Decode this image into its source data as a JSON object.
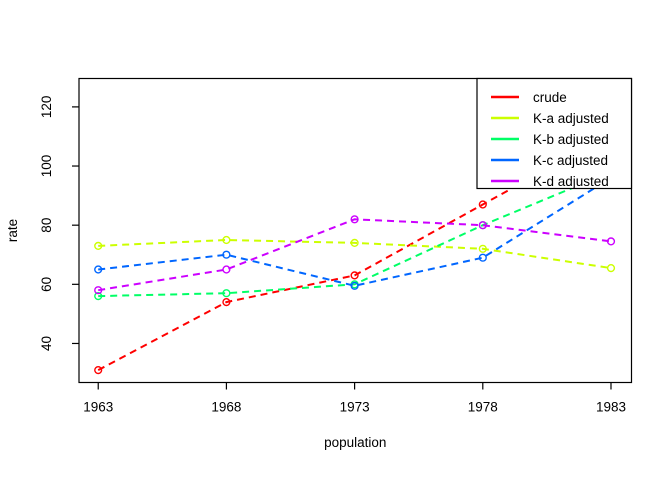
{
  "window": {
    "background": "#FFFFFF"
  },
  "chart_data": {
    "type": "line",
    "title": "",
    "xlabel": "population",
    "ylabel": "rate",
    "x": [
      1963,
      1968,
      1973,
      1978,
      1983
    ],
    "x_tick_labels": [
      "1963",
      "1968",
      "1973",
      "1978",
      "1983"
    ],
    "y_ticks": [
      40,
      60,
      80,
      100,
      120
    ],
    "y_tick_labels": [
      "40",
      "60",
      "80",
      "100",
      "120"
    ],
    "xlim": [
      1962.25,
      1983.8
    ],
    "ylim": [
      26.8,
      129.6
    ],
    "grid": false,
    "line_style": "dashed",
    "marker": "open-circle",
    "axis_color": "#000000",
    "series": [
      {
        "name": "crude",
        "color": "#FF0000",
        "values": [
          31,
          54,
          63,
          87,
          111
        ]
      },
      {
        "name": "K-a adjusted",
        "color": "#CCFF00",
        "values": [
          73,
          75,
          74,
          72,
          65.5
        ]
      },
      {
        "name": "K-b adjusted",
        "color": "#00FF66",
        "values": [
          56,
          57,
          60,
          80,
          98
        ]
      },
      {
        "name": "K-c adjusted",
        "color": "#0066FF",
        "values": [
          65,
          70,
          59.5,
          69,
          96
        ]
      },
      {
        "name": "K-d adjusted",
        "color": "#CC00FF",
        "values": [
          58,
          65,
          82,
          80,
          74.5
        ]
      }
    ],
    "legend": {
      "position": "topright",
      "entries": [
        {
          "label": "crude",
          "color": "#FF0000"
        },
        {
          "label": "K-a adjusted",
          "color": "#CCFF00"
        },
        {
          "label": "K-b adjusted",
          "color": "#00FF66"
        },
        {
          "label": "K-c adjusted",
          "color": "#0066FF"
        },
        {
          "label": "K-d adjusted",
          "color": "#CC00FF"
        }
      ]
    }
  }
}
